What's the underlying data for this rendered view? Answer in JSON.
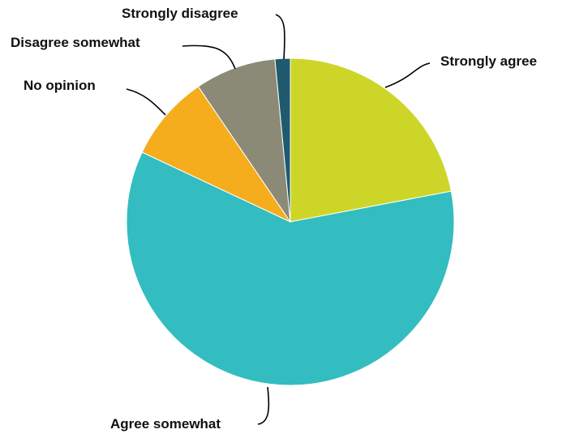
{
  "chart_data": {
    "type": "pie",
    "title": "",
    "start_angle_deg": 0,
    "direction": "clockwise",
    "slices": [
      {
        "label": "Strongly agree",
        "value": 22.0,
        "color": "#cdd628"
      },
      {
        "label": "Agree somewhat",
        "value": 60.0,
        "color": "#33bdc0"
      },
      {
        "label": "No opinion",
        "value": 8.5,
        "color": "#f5ad1e"
      },
      {
        "label": "Disagree somewhat",
        "value": 8.0,
        "color": "#8b8a77"
      },
      {
        "label": "Strongly disagree",
        "value": 1.5,
        "color": "#1f5a6e"
      }
    ]
  }
}
